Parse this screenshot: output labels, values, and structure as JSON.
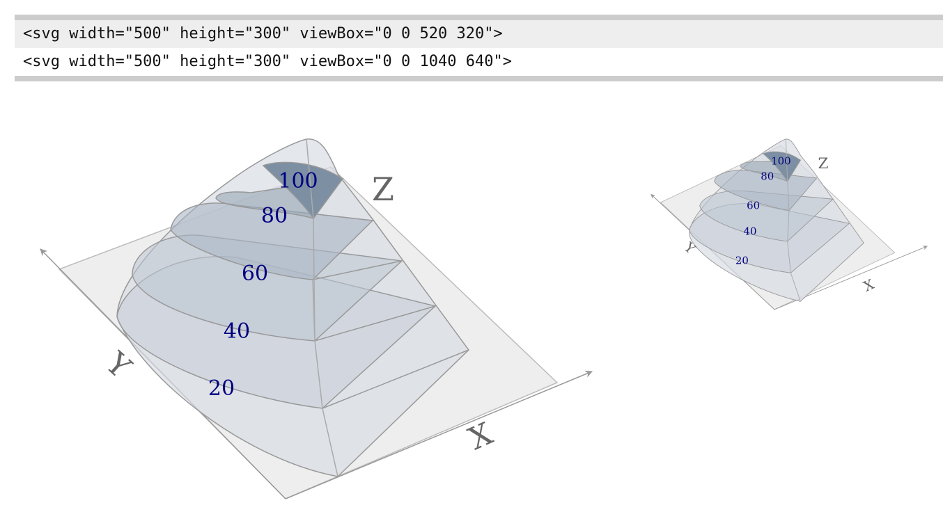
{
  "code": {
    "lines": [
      "<svg width=\"500\" height=\"300\" viewBox=\"0 0 520 320\">",
      "<svg width=\"500\" height=\"300\" viewBox=\"0 0 1040 640\">"
    ]
  },
  "figure": {
    "axis_labels": {
      "x": "X",
      "y": "Y",
      "z": "Z"
    },
    "levels": [
      "20",
      "40",
      "60",
      "80",
      "100"
    ],
    "colors": {
      "plane": "#eeeeee",
      "surface": "#b8c4d2",
      "top_cap": "#7d8fa3",
      "edge": "#999999",
      "axis": "#999999",
      "label": "#000080"
    }
  }
}
